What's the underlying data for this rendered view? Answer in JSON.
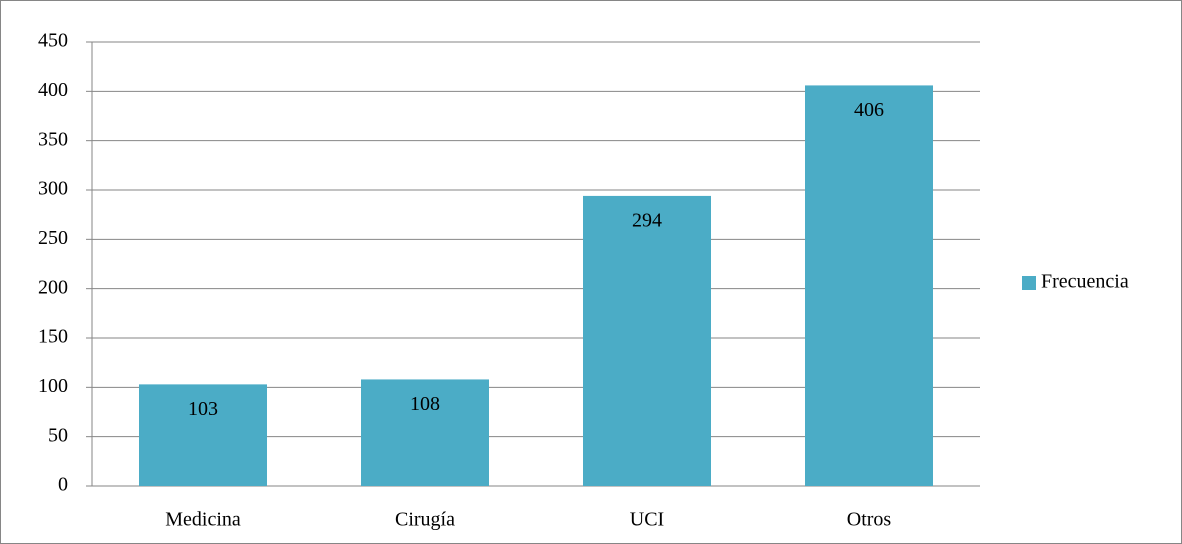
{
  "chart_data": {
    "type": "bar",
    "categories": [
      "Medicina",
      "Cirugía",
      "UCI",
      "Otros"
    ],
    "series": [
      {
        "name": "Frecuencia",
        "color": "#4bacc6",
        "values": [
          103,
          108,
          294,
          406
        ]
      }
    ],
    "ylim": [
      0,
      450
    ],
    "yticks": [
      0,
      50,
      100,
      150,
      200,
      250,
      300,
      350,
      400,
      450
    ],
    "grid": true,
    "legend": "right",
    "data_labels": true
  }
}
